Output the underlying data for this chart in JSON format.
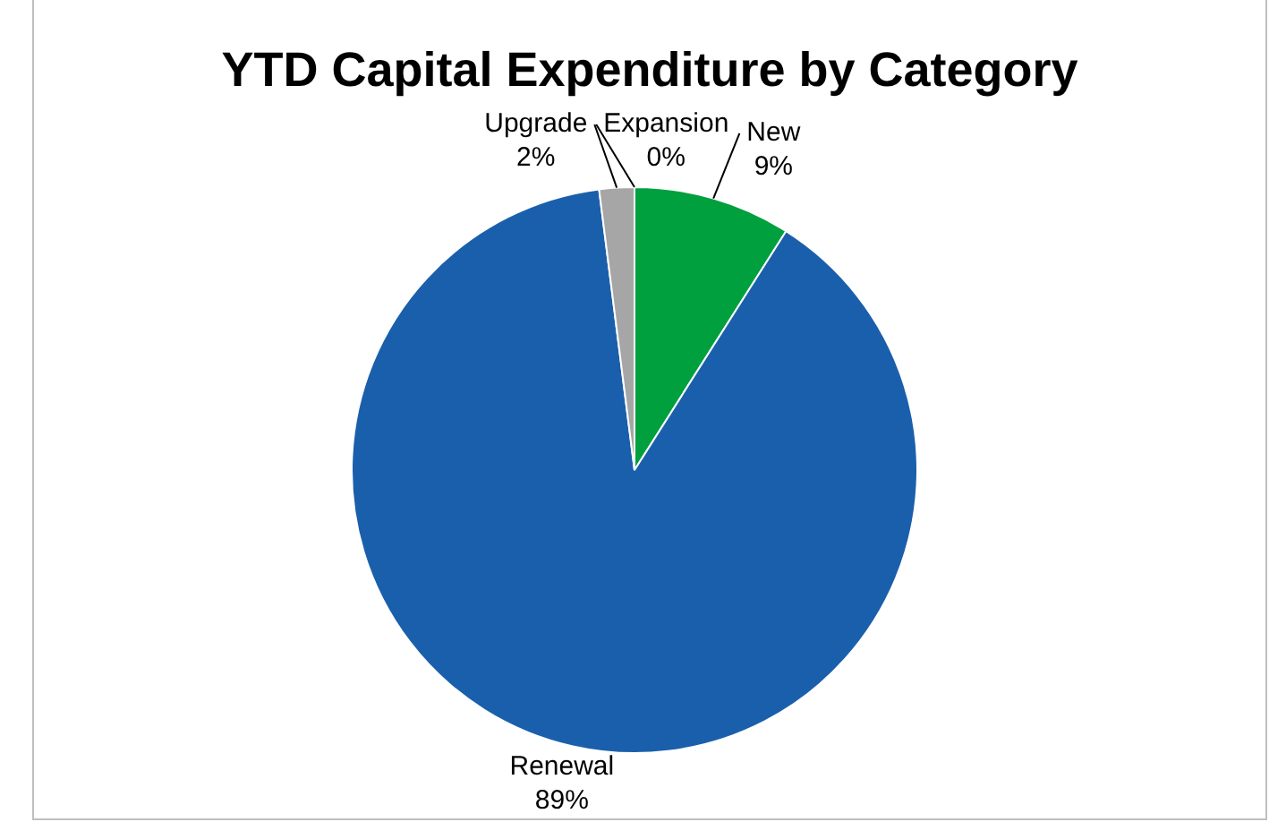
{
  "chart_data": {
    "type": "pie",
    "title": "YTD Capital Expenditure by Category",
    "categories": [
      "Expansion",
      "New",
      "Renewal",
      "Upgrade"
    ],
    "values": [
      0,
      9,
      89,
      2
    ],
    "value_labels": [
      "0%",
      "9%",
      "89%",
      "2%"
    ],
    "colors": [
      "#d9b8a8",
      "#00a03e",
      "#1a5fac",
      "#a6a6a6"
    ],
    "legend": false
  }
}
